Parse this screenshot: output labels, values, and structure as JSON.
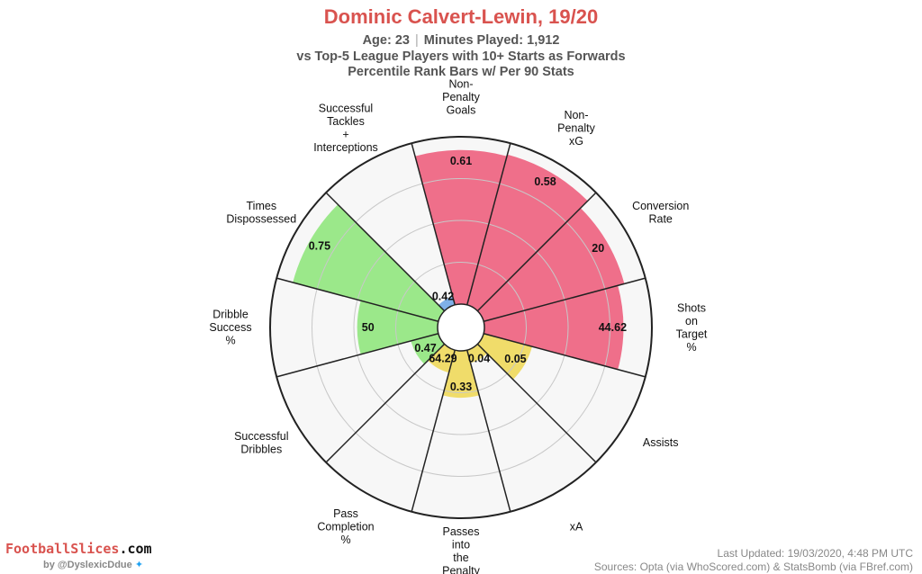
{
  "header": {
    "title": "Dominic Calvert-Lewin, 19/20",
    "age": "Age: 23",
    "minutes": "Minutes Played: 1,912",
    "comparison": "vs Top-5 League Players with 10+ Starts as Forwards",
    "method": "Percentile Rank Bars w/ Per 90 Stats"
  },
  "chart_data": {
    "type": "polar-bar",
    "unit": "percentile",
    "rlim": [
      0,
      100
    ],
    "colors": {
      "attacking": "#ef6f8a",
      "possession": "#f0dc6a",
      "dribbling": "#9be88a",
      "defending": "#7fb0e8"
    },
    "segments": [
      {
        "label": "Non-\nPenalty\nGoals",
        "value": "0.61",
        "percentile": 92,
        "group": "attacking"
      },
      {
        "label": "Non-\nPenalty\nxG",
        "value": "0.58",
        "percentile": 93,
        "group": "attacking"
      },
      {
        "label": "Conversion\nRate",
        "value": "20",
        "percentile": 87,
        "group": "attacking"
      },
      {
        "label": "Shots\non\nTarget\n%",
        "value": "44.62",
        "percentile": 83,
        "group": "attacking"
      },
      {
        "label": "Assists",
        "value": "0.05",
        "percentile": 30,
        "group": "possession"
      },
      {
        "label": "xA",
        "value": "0.04",
        "percentile": 8,
        "group": "possession"
      },
      {
        "label": "Passes\ninto\nthe\nPenalty\nArea",
        "value": "0.33",
        "percentile": 28,
        "group": "possession"
      },
      {
        "label": "Pass\nCompletion\n%",
        "value": "64.29",
        "percentile": 14,
        "group": "possession"
      },
      {
        "label": "Successful\nDribbles",
        "value": "0.47",
        "percentile": 17,
        "group": "dribbling"
      },
      {
        "label": "Dribble\nSuccess\n%",
        "value": "50",
        "percentile": 48,
        "group": "dribbling"
      },
      {
        "label": "Times\nDispossessed",
        "value": "0.75",
        "percentile": 90,
        "group": "dribbling"
      },
      {
        "label": "Successful\nTackles\n+\nInterceptions",
        "value": "0.42",
        "percentile": 5,
        "group": "defending"
      }
    ]
  },
  "branding": {
    "site_name_part1": "FootballSlices",
    "site_name_part2": ".com",
    "byline": "by @DyslexicDdue",
    "bird_icon": "twitter-bird-icon"
  },
  "footer": {
    "updated": "Last Updated: 19/03/2020, 4:48 PM UTC",
    "sources": "Sources: Opta (via WhoScored.com) & StatsBomb (via FBref.com)"
  }
}
